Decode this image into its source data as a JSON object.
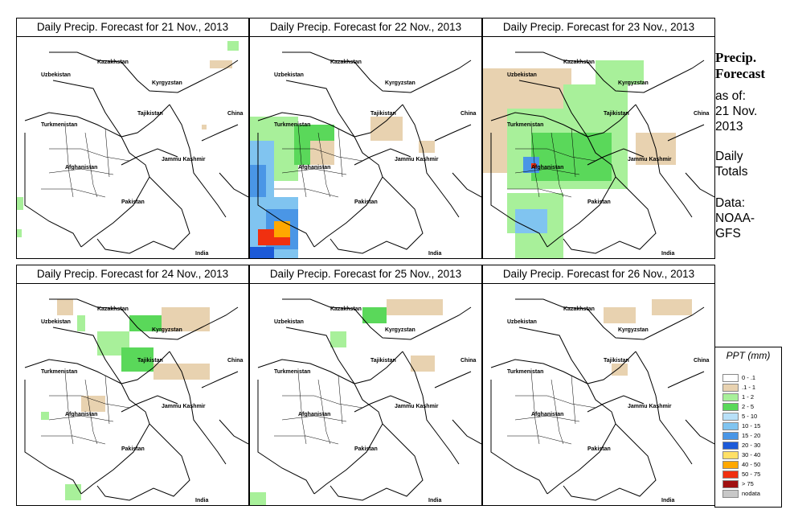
{
  "panels": [
    {
      "title": "Daily Precip. Forecast for  21 Nov., 2013"
    },
    {
      "title": "Daily Precip. Forecast for  22 Nov., 2013"
    },
    {
      "title": "Daily Precip. Forecast for  23 Nov., 2013"
    },
    {
      "title": "Daily Precip. Forecast for  24 Nov., 2013"
    },
    {
      "title": "Daily Precip. Forecast for  25 Nov., 2013"
    },
    {
      "title": "Daily Precip. Forecast for  26 Nov., 2013"
    }
  ],
  "map_labels": {
    "kazakhstan": "Kazakhstan",
    "uzbekistan": "Uzbekistan",
    "kyrgyzstan": "Kyrgyzstan",
    "tajikistan": "Tajikistan",
    "turkmenistan": "Turkmenistan",
    "china": "China",
    "jammu_kashmir": "Jammu Kashmir",
    "afghanistan": "Afghanistan",
    "pakistan": "Pakistan",
    "india": "India"
  },
  "sidebar": {
    "title_line1": "Precip.",
    "title_line2": "Forecast",
    "asof_line1": "as of:",
    "asof_line2": "21 Nov.",
    "asof_line3": "2013",
    "totals_line1": "Daily",
    "totals_line2": "Totals",
    "data_line1": "Data:",
    "data_line2": "NOAA-",
    "data_line3": "GFS"
  },
  "legend": {
    "title": "PPT (mm)",
    "items": [
      {
        "label": "0 - .1",
        "color": "#ffffff"
      },
      {
        "label": ".1 - 1",
        "color": "#e8d2b0"
      },
      {
        "label": "1 - 2",
        "color": "#a8f09a"
      },
      {
        "label": "2 - 5",
        "color": "#5ad85a"
      },
      {
        "label": "5 - 10",
        "color": "#b8e0f8"
      },
      {
        "label": "10 - 15",
        "color": "#80c4f0"
      },
      {
        "label": "15 - 20",
        "color": "#4a96e6"
      },
      {
        "label": "20 - 30",
        "color": "#1c5ad8"
      },
      {
        "label": "30 - 40",
        "color": "#ffe066"
      },
      {
        "label": "40 - 50",
        "color": "#ffa800"
      },
      {
        "label": "50 - 75",
        "color": "#f03010"
      },
      {
        "label": "> 75",
        "color": "#a01010"
      },
      {
        "label": "nodata",
        "color": "#c8c8c8"
      }
    ]
  }
}
